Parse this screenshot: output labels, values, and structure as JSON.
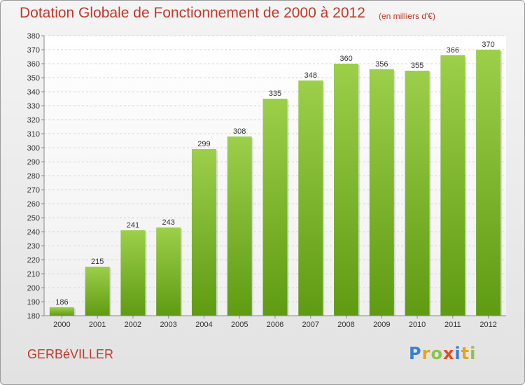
{
  "chart_data": {
    "type": "bar",
    "title": "Dotation Globale de Fonctionnement de 2000 à 2012",
    "subtitle": "(en milliers d'€)",
    "categories": [
      "2000",
      "2001",
      "2002",
      "2003",
      "2004",
      "2005",
      "2006",
      "2007",
      "2008",
      "2009",
      "2010",
      "2011",
      "2012"
    ],
    "values": [
      186,
      215,
      241,
      243,
      299,
      308,
      335,
      348,
      360,
      356,
      355,
      366,
      370
    ],
    "xlabel": "",
    "ylabel": "",
    "ylim": [
      180,
      380
    ],
    "ytick_step": 10,
    "grid": true,
    "bar_colors": [
      "#9ccf4a",
      "#5f9b12"
    ]
  },
  "footer": {
    "commune": "GERBéVILLER",
    "logo_letters": [
      "P",
      "r",
      "o",
      "x",
      "i",
      "t",
      "i"
    ],
    "logo_colors": [
      "#3a7fd5",
      "#e8a317",
      "#8bc34a",
      "#e8491d",
      "#3a7fd5",
      "#e8a317",
      "#8bc34a"
    ]
  }
}
